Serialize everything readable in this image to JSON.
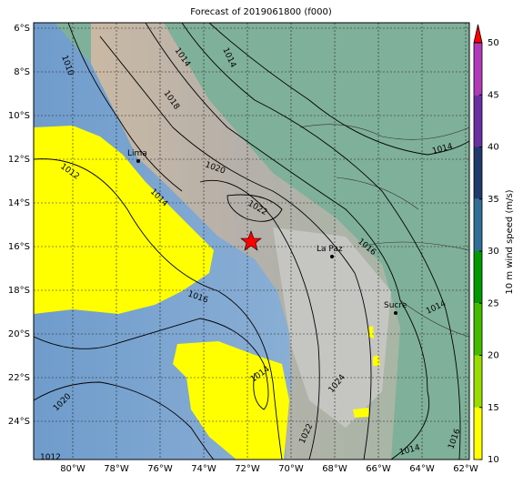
{
  "title": "Forecast of 2019061800 (f000)",
  "map": {
    "lat_labels": [
      "6°S",
      "8°S",
      "10°S",
      "12°S",
      "14°S",
      "16°S",
      "18°S",
      "20°S",
      "22°S",
      "24°S"
    ],
    "lon_labels": [
      "80°W",
      "78°W",
      "76°W",
      "74°W",
      "72°W",
      "70°W",
      "68°W",
      "66°W",
      "64°W",
      "62°W"
    ],
    "cities": [
      "Lima",
      "La Paz",
      "Sucre"
    ],
    "contour_labels": [
      "1010",
      "1014",
      "1014",
      "1018",
      "1020",
      "1012",
      "1014",
      "1022",
      "1016",
      "1014",
      "1016",
      "1014",
      "1014",
      "1024",
      "1020",
      "1022",
      "1014",
      "1016",
      "1012"
    ]
  },
  "colorbar": {
    "label": "10 m wind speed (m/s)",
    "lim": [
      10,
      50
    ],
    "ticks": [
      10,
      15,
      20,
      25,
      30,
      35,
      40,
      45,
      50
    ],
    "colors": [
      "#ffff00",
      "#99dd00",
      "#44bb00",
      "#009900",
      "#2f6f96",
      "#1f3a6b",
      "#6a2fa0",
      "#b03ab8"
    ],
    "extend_color": "#ff0000"
  }
}
